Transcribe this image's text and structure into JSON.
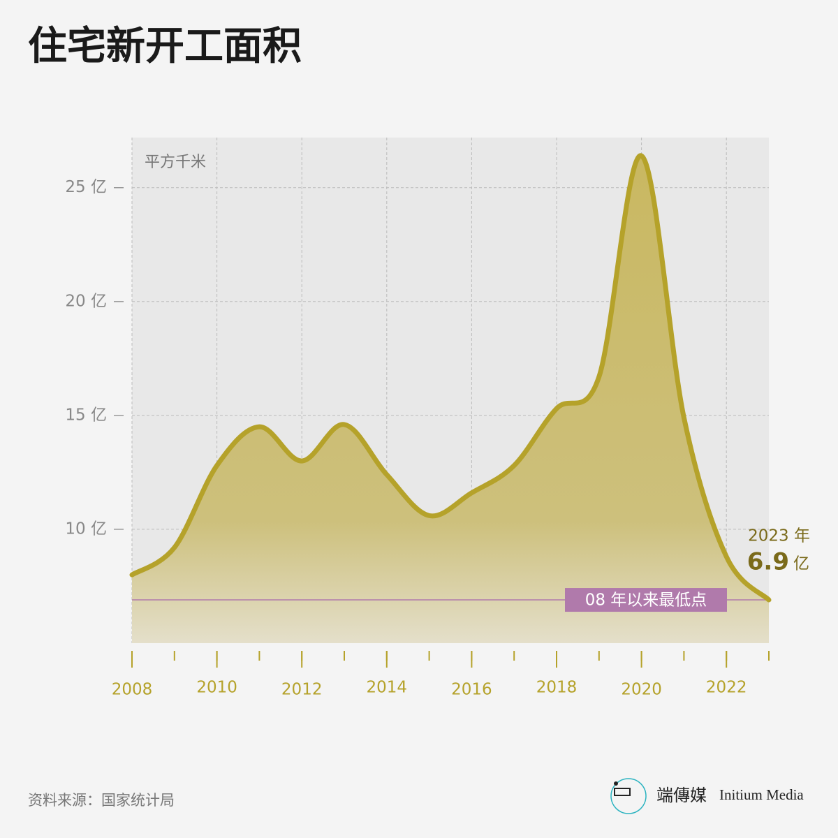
{
  "chart_data": {
    "type": "area-line",
    "title": "住宅新开工面积",
    "unit_label": "平方千米",
    "x": [
      2008,
      2009,
      2010,
      2011,
      2012,
      2013,
      2014,
      2015,
      2016,
      2017,
      2018,
      2019,
      2020,
      2021,
      2022,
      2023
    ],
    "values": [
      8.0,
      9.2,
      12.8,
      14.5,
      13.0,
      14.6,
      12.4,
      10.6,
      11.6,
      12.8,
      15.3,
      16.7,
      26.4,
      14.9,
      8.8,
      6.9
    ],
    "color": "#b5a22a",
    "xlim": [
      2008,
      2023
    ],
    "xticks": [
      2008,
      2010,
      2012,
      2014,
      2016,
      2018,
      2020,
      2022
    ],
    "ylim": [
      5,
      27.2
    ],
    "yticks": [
      {
        "value": 10,
        "label": "10 亿"
      },
      {
        "value": 15,
        "label": "15 亿"
      },
      {
        "value": 20,
        "label": "20 亿"
      },
      {
        "value": 25,
        "label": "25 亿"
      }
    ],
    "grid": true,
    "reference_line": {
      "value": 6.9,
      "label": "08 年以来最低点",
      "color": "#b07aab"
    },
    "end_annotation": {
      "year_label": "2023 年",
      "unit": "亿"
    },
    "source": "资料来源：国家统计局",
    "brand": {
      "chinese": "端傳媒",
      "english": "Initium Media"
    }
  }
}
